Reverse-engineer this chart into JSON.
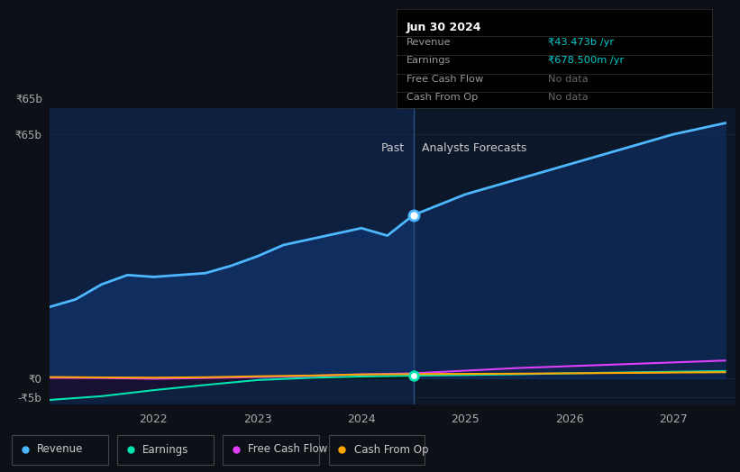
{
  "bg_color": "#0d1117",
  "plot_bg_color": "#0c1829",
  "past_bg_color": "#0c1829",
  "forecast_bg_color": "#0c1829",
  "divider_x": 2024.5,
  "ylim": [
    -7000000000.0,
    72000000000.0
  ],
  "xlim": [
    2021.0,
    2027.6
  ],
  "y_ticks": [
    65000000000.0,
    0,
    -5000000000.0
  ],
  "y_tick_labels": [
    "₹65b",
    "₹0",
    "-₹5b"
  ],
  "x_ticks": [
    2022,
    2023,
    2024,
    2025,
    2026,
    2027
  ],
  "past_label": "Past",
  "forecast_label": "Analysts Forecasts",
  "info_box": {
    "title": "Jun 30 2024",
    "rows": [
      {
        "label": "Revenue",
        "value": "₹43.473b /yr",
        "value_color": "#00cccc"
      },
      {
        "label": "Earnings",
        "value": "₹678.500m /yr",
        "value_color": "#00cccc"
      },
      {
        "label": "Free Cash Flow",
        "value": "No data",
        "value_color": "#666666"
      },
      {
        "label": "Cash From Op",
        "value": "No data",
        "value_color": "#666666"
      }
    ]
  },
  "legend": [
    {
      "label": "Revenue",
      "color": "#4db8ff"
    },
    {
      "label": "Earnings",
      "color": "#00e5b0"
    },
    {
      "label": "Free Cash Flow",
      "color": "#e040fb"
    },
    {
      "label": "Cash From Op",
      "color": "#ffa500"
    }
  ],
  "revenue_past_x": [
    2021.0,
    2021.25,
    2021.5,
    2021.75,
    2022.0,
    2022.25,
    2022.5,
    2022.75,
    2023.0,
    2023.25,
    2023.5,
    2023.75,
    2024.0,
    2024.25,
    2024.5
  ],
  "revenue_past_y": [
    19000000000.0,
    21000000000.0,
    25000000000.0,
    27500000000.0,
    27000000000.0,
    27500000000.0,
    28000000000.0,
    30000000000.0,
    32500000000.0,
    35500000000.0,
    37000000000.0,
    38500000000.0,
    40000000000.0,
    38000000000.0,
    43473000000.0
  ],
  "revenue_forecast_x": [
    2024.5,
    2025.0,
    2025.5,
    2026.0,
    2026.5,
    2027.0,
    2027.5
  ],
  "revenue_forecast_y": [
    43473000000.0,
    49000000000.0,
    53000000000.0,
    57000000000.0,
    61000000000.0,
    65000000000.0,
    68000000000.0
  ],
  "earnings_past_x": [
    2021.0,
    2021.5,
    2022.0,
    2022.5,
    2023.0,
    2023.5,
    2024.0,
    2024.5
  ],
  "earnings_past_y": [
    -5800000000.0,
    -4800000000.0,
    -3200000000.0,
    -1800000000.0,
    -500000000.0,
    100000000.0,
    450000000.0,
    678500000.0
  ],
  "earnings_forecast_x": [
    2024.5,
    2025.0,
    2025.5,
    2026.0,
    2026.5,
    2027.0,
    2027.5
  ],
  "earnings_forecast_y": [
    678500000.0,
    850000000.0,
    1050000000.0,
    1300000000.0,
    1500000000.0,
    1700000000.0,
    1900000000.0
  ],
  "fcf_past_x": [
    2021.0,
    2021.5,
    2022.0,
    2022.5,
    2023.0,
    2023.5,
    2024.0,
    2024.5
  ],
  "fcf_past_y": [
    100000000.0,
    50000000.0,
    -150000000.0,
    50000000.0,
    300000000.0,
    600000000.0,
    1000000000.0,
    1300000000.0
  ],
  "fcf_forecast_x": [
    2024.5,
    2025.0,
    2025.5,
    2026.0,
    2026.5,
    2027.0,
    2027.5
  ],
  "fcf_forecast_y": [
    1300000000.0,
    2000000000.0,
    2700000000.0,
    3200000000.0,
    3700000000.0,
    4200000000.0,
    4700000000.0
  ],
  "cashop_past_x": [
    2021.0,
    2021.5,
    2022.0,
    2022.5,
    2023.0,
    2023.5,
    2024.0,
    2024.5
  ],
  "cashop_past_y": [
    300000000.0,
    200000000.0,
    150000000.0,
    250000000.0,
    500000000.0,
    700000000.0,
    1000000000.0,
    1100000000.0
  ],
  "cashop_forecast_x": [
    2024.5,
    2025.0,
    2025.5,
    2026.0,
    2027.0,
    2027.5
  ],
  "cashop_forecast_y": [
    1100000000.0,
    1150000000.0,
    1200000000.0,
    1300000000.0,
    1500000000.0,
    1600000000.0
  ],
  "revenue_color": "#4db8ff",
  "revenue_fill_past": "#0f2d5e",
  "revenue_fill_forecast": "#0f2d5e",
  "earnings_color": "#00e5b0",
  "fcf_color": "#e040fb",
  "cashop_color": "#ffa500",
  "grid_color": "#1a2a3a",
  "divider_line_color": "#2a5080"
}
